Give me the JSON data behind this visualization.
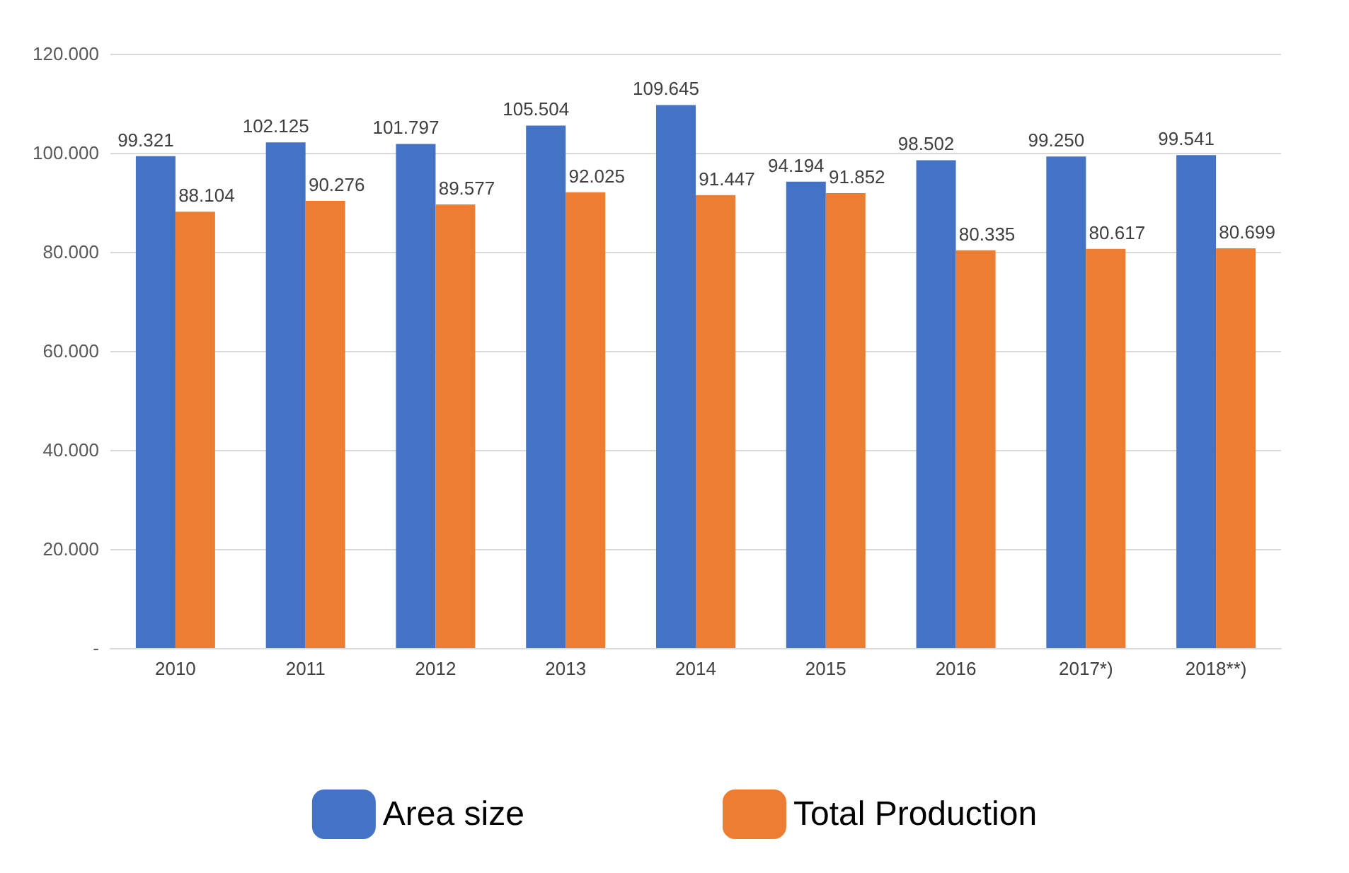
{
  "chart_data": {
    "type": "bar",
    "categories": [
      "2010",
      "2011",
      "2012",
      "2013",
      "2014",
      "2015",
      "2016",
      "2017*)",
      "2018**)"
    ],
    "series": [
      {
        "name": "Area size",
        "color": "#4472c4",
        "values": [
          99321,
          102125,
          101797,
          105504,
          109645,
          94194,
          98502,
          99250,
          99541
        ],
        "value_labels": [
          "99.321",
          "102.125",
          "101.797",
          "105.504",
          "109.645",
          "94.194",
          "98.502",
          "99.250",
          "99.541"
        ]
      },
      {
        "name": "Total Production",
        "color": "#ed7d31",
        "values": [
          88104,
          90276,
          89577,
          92025,
          91447,
          91852,
          80335,
          80617,
          80699
        ],
        "value_labels": [
          "88.104",
          "90.276",
          "89.577",
          "92.025",
          "91.447",
          "91.852",
          "80.335",
          "80.617",
          "80.699"
        ]
      }
    ],
    "ylim": [
      0,
      120000
    ],
    "yticks": [
      {
        "value": 0,
        "label": "-"
      },
      {
        "value": 20000,
        "label": "20.000"
      },
      {
        "value": 40000,
        "label": "40.000"
      },
      {
        "value": 60000,
        "label": "60.000"
      },
      {
        "value": 80000,
        "label": "80.000"
      },
      {
        "value": 100000,
        "label": "100.000"
      },
      {
        "value": 120000,
        "label": "120.000"
      }
    ],
    "grid": "y",
    "legend": "bottom"
  }
}
